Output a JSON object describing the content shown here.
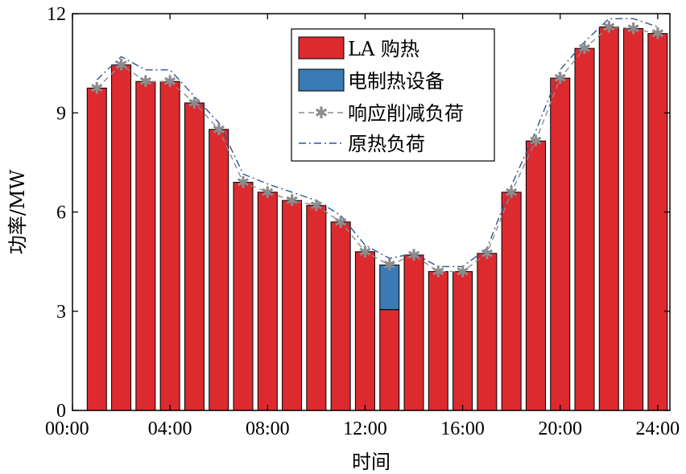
{
  "chart_data": {
    "type": "bar",
    "xlabel": "时间",
    "ylabel": "功率/MW",
    "ylim": [
      0,
      12
    ],
    "xlim": [
      0,
      24.5
    ],
    "y_ticks": [
      0,
      3,
      6,
      9,
      12
    ],
    "x_ticks": [
      {
        "value": 0,
        "label": "00:00"
      },
      {
        "value": 4,
        "label": "04:00"
      },
      {
        "value": 8,
        "label": "08:00"
      },
      {
        "value": 12,
        "label": "12:00"
      },
      {
        "value": 16,
        "label": "16:00"
      },
      {
        "value": 20,
        "label": "20:00"
      },
      {
        "value": 24,
        "label": "24:00"
      }
    ],
    "hours": [
      1,
      2,
      3,
      4,
      5,
      6,
      7,
      8,
      9,
      10,
      11,
      12,
      13,
      14,
      15,
      16,
      17,
      18,
      19,
      20,
      21,
      22,
      23,
      24
    ],
    "legend_position": "top-right",
    "grid": false,
    "series": [
      {
        "name": "LA 购热",
        "kind": "bar",
        "color": "#dc2a2f",
        "values": [
          9.75,
          10.45,
          9.95,
          9.95,
          9.3,
          8.5,
          6.9,
          6.6,
          6.35,
          6.2,
          5.7,
          4.8,
          3.05,
          4.7,
          4.2,
          4.2,
          4.75,
          6.6,
          8.15,
          10.05,
          10.95,
          11.6,
          11.55,
          11.4
        ]
      },
      {
        "name": "电制热设备",
        "kind": "bar-stacked",
        "color": "#3a7ab5",
        "values": [
          0,
          0,
          0,
          0,
          0,
          0,
          0,
          0,
          0,
          0,
          0,
          0,
          1.35,
          0,
          0,
          0,
          0,
          0,
          0,
          0,
          0,
          0,
          0,
          0
        ]
      },
      {
        "name": "响应削减负荷",
        "kind": "line-dashed-star",
        "color": "#8c8c8c",
        "values": [
          9.75,
          10.45,
          9.95,
          9.95,
          9.3,
          8.5,
          6.9,
          6.6,
          6.35,
          6.2,
          5.7,
          4.8,
          4.4,
          4.7,
          4.2,
          4.2,
          4.75,
          6.6,
          8.15,
          10.05,
          10.95,
          11.6,
          11.55,
          11.4
        ]
      },
      {
        "name": "原热负荷",
        "kind": "line-dashdot",
        "color": "#2f5597",
        "values": [
          10.0,
          10.7,
          10.3,
          10.3,
          9.5,
          8.7,
          7.15,
          6.85,
          6.6,
          6.35,
          5.9,
          5.0,
          4.6,
          4.75,
          4.35,
          4.35,
          4.9,
          6.8,
          8.45,
          10.3,
          11.15,
          11.85,
          11.85,
          11.6
        ]
      }
    ]
  }
}
